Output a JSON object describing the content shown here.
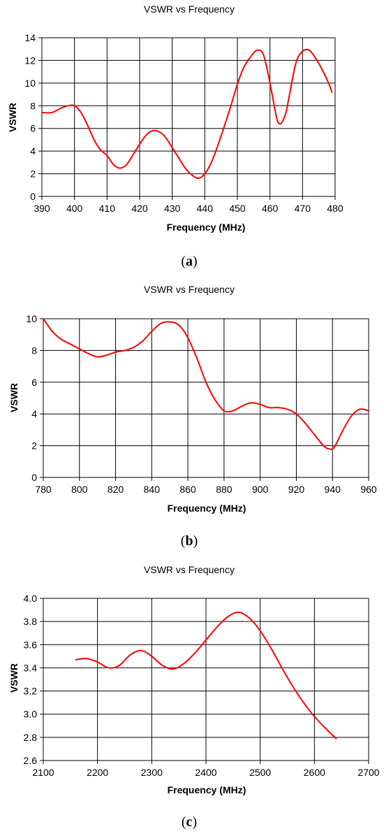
{
  "chart_data": [
    {
      "type": "line",
      "title": "VSWR vs Frequency",
      "xlabel": "Frequency (MHz)",
      "ylabel": "VSWR",
      "caption_open": "(",
      "caption_letter": "a",
      "caption_close": ")",
      "xlim": [
        390,
        480
      ],
      "ylim": [
        0,
        14
      ],
      "xticks": [
        "390",
        "400",
        "410",
        "420",
        "430",
        "440",
        "450",
        "460",
        "470",
        "480"
      ],
      "yticks": [
        "0",
        "2",
        "4",
        "6",
        "8",
        "10",
        "12",
        "14"
      ],
      "grid": true,
      "line_color": "#ff0000",
      "series": [
        {
          "x": [
            390,
            393,
            396,
            398,
            400,
            402,
            404,
            406,
            408,
            410,
            412,
            414,
            416,
            418,
            420,
            422,
            424,
            426,
            428,
            430,
            432,
            434,
            436,
            438,
            440,
            442,
            444,
            446,
            448,
            450,
            452,
            454,
            456,
            458,
            460,
            462,
            463,
            464,
            465,
            466,
            468,
            470,
            472,
            474,
            476,
            478,
            479
          ],
          "values": [
            7.4,
            7.4,
            7.8,
            8.0,
            8.0,
            7.4,
            6.3,
            5.0,
            4.1,
            3.6,
            2.8,
            2.5,
            2.8,
            3.7,
            4.6,
            5.4,
            5.8,
            5.7,
            5.2,
            4.3,
            3.4,
            2.5,
            1.9,
            1.6,
            2.0,
            3.0,
            4.5,
            6.2,
            8.0,
            9.9,
            11.4,
            12.3,
            12.9,
            12.5,
            10.0,
            7.0,
            6.4,
            6.7,
            7.5,
            9.0,
            11.8,
            12.8,
            12.9,
            12.2,
            11.2,
            10.0,
            9.2
          ]
        }
      ]
    },
    {
      "type": "line",
      "title": "VSWR vs Frequency",
      "xlabel": "Frequency (MHz)",
      "ylabel": "VSWR",
      "caption_open": "(",
      "caption_letter": "b",
      "caption_close": ")",
      "xlim": [
        780,
        960
      ],
      "ylim": [
        0,
        10
      ],
      "xticks": [
        "780",
        "800",
        "820",
        "840",
        "860",
        "880",
        "900",
        "920",
        "940",
        "960"
      ],
      "yticks": [
        "0",
        "2",
        "4",
        "6",
        "8",
        "10"
      ],
      "grid": true,
      "line_color": "#ff0000",
      "series": [
        {
          "x": [
            780,
            785,
            790,
            795,
            800,
            805,
            810,
            815,
            820,
            825,
            830,
            835,
            840,
            845,
            850,
            855,
            860,
            865,
            870,
            875,
            880,
            885,
            890,
            895,
            900,
            905,
            910,
            915,
            920,
            925,
            930,
            935,
            938,
            941,
            945,
            950,
            955,
            960
          ],
          "values": [
            10.0,
            9.2,
            8.7,
            8.4,
            8.1,
            7.8,
            7.6,
            7.7,
            7.9,
            8.0,
            8.2,
            8.6,
            9.2,
            9.7,
            9.8,
            9.6,
            8.8,
            7.5,
            6.0,
            4.9,
            4.2,
            4.2,
            4.5,
            4.7,
            4.6,
            4.4,
            4.4,
            4.3,
            4.0,
            3.4,
            2.7,
            2.0,
            1.8,
            1.9,
            2.8,
            3.8,
            4.3,
            4.2
          ]
        }
      ]
    },
    {
      "type": "line",
      "title": "VSWR vs Frequency",
      "xlabel": "Frequency (MHz)",
      "ylabel": "VSWR",
      "caption_open": "(",
      "caption_letter": "c",
      "caption_close": ")",
      "xlim": [
        2100,
        2700
      ],
      "ylim": [
        2.6,
        4.0
      ],
      "xticks": [
        "2100",
        "2200",
        "2300",
        "2400",
        "2500",
        "2600",
        "2700"
      ],
      "yticks": [
        "2.6",
        "2.8",
        "3.0",
        "3.2",
        "3.4",
        "3.6",
        "3.8",
        "4.0"
      ],
      "grid": true,
      "line_color": "#ff0000",
      "series": [
        {
          "x": [
            2160,
            2180,
            2200,
            2220,
            2240,
            2260,
            2280,
            2300,
            2320,
            2340,
            2360,
            2380,
            2400,
            2420,
            2440,
            2460,
            2480,
            2500,
            2520,
            2540,
            2560,
            2580,
            2600,
            2620,
            2640
          ],
          "values": [
            3.47,
            3.48,
            3.45,
            3.4,
            3.42,
            3.51,
            3.55,
            3.5,
            3.42,
            3.39,
            3.44,
            3.53,
            3.64,
            3.75,
            3.84,
            3.88,
            3.83,
            3.72,
            3.57,
            3.4,
            3.24,
            3.1,
            2.98,
            2.88,
            2.79
          ]
        }
      ]
    }
  ]
}
